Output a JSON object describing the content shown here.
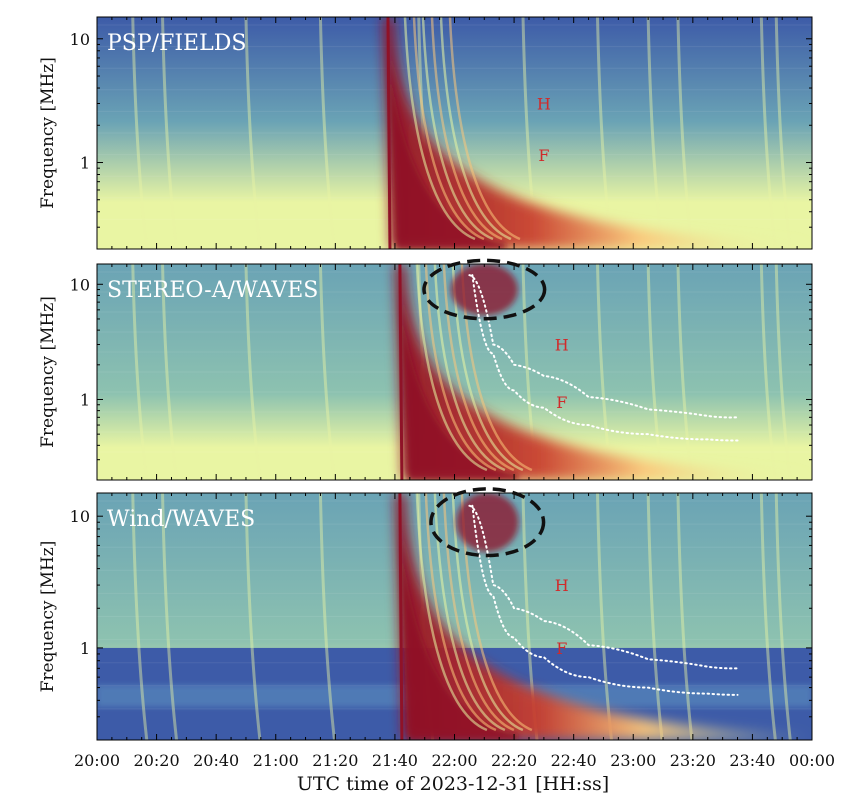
{
  "chart_data": {
    "type": "heatmap",
    "title": "",
    "colormap": "Spectral_r",
    "colors": {
      "low": "#3d5ba8",
      "mid_low": "#6aa3b5",
      "mid": "#e9f5a3",
      "mid_high": "#fbc67a",
      "high": "#8f1227",
      "overlay_white": "#ffffff",
      "marker_red": "#d12a2a",
      "ellipse": "#111111"
    },
    "xlabel": "UTC time of 2023-12-31 [HH:ss]",
    "xlim_minutes": [
      0,
      240
    ],
    "xticks": [
      {
        "label": "20:00",
        "min": 0
      },
      {
        "label": "20:20",
        "min": 20
      },
      {
        "label": "20:40",
        "min": 40
      },
      {
        "label": "21:00",
        "min": 60
      },
      {
        "label": "21:20",
        "min": 80
      },
      {
        "label": "21:40",
        "min": 100
      },
      {
        "label": "22:00",
        "min": 120
      },
      {
        "label": "22:20",
        "min": 140
      },
      {
        "label": "22:40",
        "min": 160
      },
      {
        "label": "23:00",
        "min": 180
      },
      {
        "label": "23:20",
        "min": 200
      },
      {
        "label": "23:40",
        "min": 220
      },
      {
        "label": "00:00",
        "min": 240
      }
    ],
    "ylabel": "Frequency [MHz]",
    "yscale": "log",
    "panels": [
      {
        "name": "PSP/FIELDS",
        "ylim_mhz": [
          0.2,
          15
        ],
        "yticks": [
          {
            "label": "1",
            "value": 1
          },
          {
            "label": "10",
            "value": 10
          }
        ],
        "burst_onset_min": 97,
        "lower_cutoff": null,
        "labels": [
          {
            "text": "H",
            "t_min": 150,
            "f_mhz": 3.0
          },
          {
            "text": "F",
            "t_min": 150,
            "f_mhz": 1.15
          }
        ],
        "fits": [],
        "ellipse": null
      },
      {
        "name": "STEREO-A/WAVES",
        "ylim_mhz": [
          0.2,
          15
        ],
        "yticks": [
          {
            "label": "1",
            "value": 1
          },
          {
            "label": "10",
            "value": 10
          }
        ],
        "burst_onset_min": 101,
        "lower_cutoff": null,
        "labels": [
          {
            "text": "H",
            "t_min": 156,
            "f_mhz": 3.0
          },
          {
            "text": "F",
            "t_min": 156,
            "f_mhz": 0.95
          }
        ],
        "fits": [
          {
            "t_min": [
              125,
              133,
              140,
              150,
              165,
              185,
              205,
              215
            ],
            "f_mhz": [
              12,
              3.0,
              2.0,
              1.6,
              1.05,
              0.82,
              0.72,
              0.7
            ]
          },
          {
            "t_min": [
              126,
              133,
              140,
              150,
              165,
              185,
              205,
              215
            ],
            "f_mhz": [
              12,
              2.5,
              1.2,
              0.85,
              0.6,
              0.5,
              0.45,
              0.44
            ]
          }
        ],
        "ellipse": {
          "t_min": 130,
          "f_mhz": 9.0,
          "rx_min": 15,
          "ry_decades": 0.32
        }
      },
      {
        "name": "Wind/WAVES",
        "ylim_mhz": [
          0.2,
          15
        ],
        "yticks": [
          {
            "label": "1",
            "value": 1
          },
          {
            "label": "10",
            "value": 10
          }
        ],
        "burst_onset_min": 101,
        "lower_cutoff": {
          "f_mhz": 1.0
        },
        "labels": [
          {
            "text": "H",
            "t_min": 156,
            "f_mhz": 3.0
          },
          {
            "text": "F",
            "t_min": 156,
            "f_mhz": 1.0
          }
        ],
        "fits": [
          {
            "t_min": [
              125,
              133,
              140,
              150,
              165,
              185,
              205,
              215
            ],
            "f_mhz": [
              12,
              3.0,
              2.0,
              1.6,
              1.05,
              0.82,
              0.72,
              0.7
            ]
          },
          {
            "t_min": [
              126,
              133,
              140,
              150,
              165,
              185,
              205,
              215
            ],
            "f_mhz": [
              12,
              2.5,
              1.2,
              0.85,
              0.6,
              0.5,
              0.45,
              0.44
            ]
          }
        ],
        "ellipse": {
          "t_min": 131,
          "f_mhz": 9.0,
          "rx_min": 14,
          "ry_decades": 0.3
        }
      }
    ]
  }
}
